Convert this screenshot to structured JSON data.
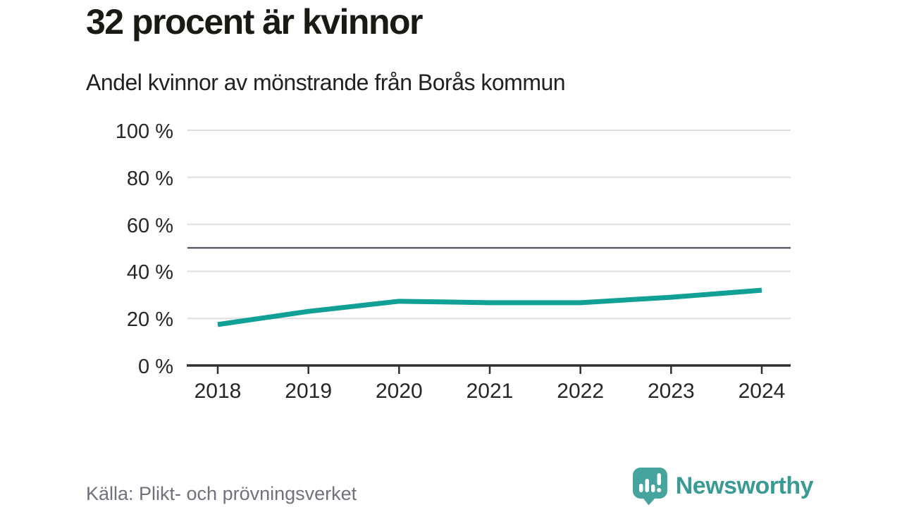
{
  "header": {
    "title": "32 procent är kvinnor",
    "subtitle": "Andel kvinnor av mönstrande från Borås kommun"
  },
  "footer": {
    "source": "Källa: Plikt- och prövningsverket",
    "brand": "Newsworthy"
  },
  "colors": {
    "line": "#11a095",
    "grid": "#dedede",
    "reference_line": "#52525e",
    "axis": "#2f2f2f",
    "tick_text": "#262626",
    "source_text": "#71717c",
    "brand_teal": "#3a9a94",
    "logo_bubble": "#45a49d"
  },
  "chart_data": {
    "type": "line",
    "title": "32 procent är kvinnor",
    "subtitle": "Andel kvinnor av mönstrande från Borås kommun",
    "x": [
      2018,
      2019,
      2020,
      2021,
      2022,
      2023,
      2024
    ],
    "series": [
      {
        "name": "Andel kvinnor av mönstrande",
        "values": [
          17.4,
          23.0,
          27.3,
          26.7,
          26.7,
          29.0,
          32.0
        ]
      }
    ],
    "xlabel": "",
    "ylabel": "",
    "ylim": [
      0,
      100
    ],
    "y_ticks": [
      0,
      20,
      40,
      60,
      80,
      100
    ],
    "y_tick_labels": [
      "0 %",
      "20 %",
      "40 %",
      "60 %",
      "80 %",
      "100 %"
    ],
    "reference_line": 50,
    "grid": "horizontal",
    "legend": "none"
  }
}
